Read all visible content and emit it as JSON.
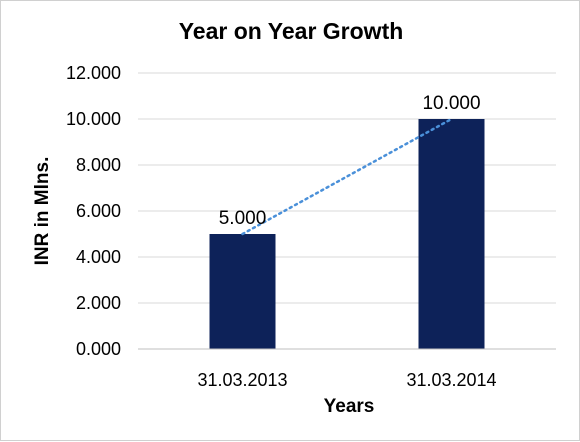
{
  "chart_data": {
    "type": "bar",
    "title": "Year on Year Growth",
    "xlabel": "Years",
    "ylabel": "INR in Mlns.",
    "categories": [
      "31.03.2013",
      "31.03.2014"
    ],
    "series": [
      {
        "values": [
          5.0,
          10.0
        ]
      }
    ],
    "data_labels": [
      "5.000",
      "10.000"
    ],
    "ylim": [
      0,
      12
    ],
    "yticks": [
      0,
      2,
      4,
      6,
      8,
      10,
      12
    ],
    "ytick_labels": [
      "0.000",
      "2.000",
      "4.000",
      "6.000",
      "8.000",
      "10.000",
      "12.000"
    ],
    "grid": true,
    "trendline": {
      "type": "linear",
      "style": "dotted",
      "color": "#4a90d9"
    },
    "colors": {
      "bar": "#0d2259",
      "grid": "#d9d9d9",
      "axis": "#bfbfbf"
    }
  }
}
